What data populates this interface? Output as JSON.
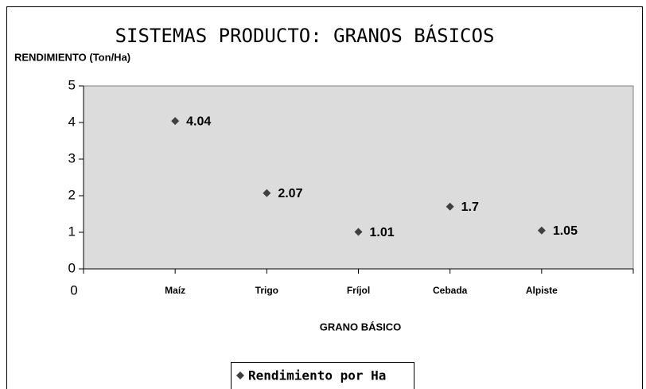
{
  "chart_data": {
    "type": "scatter",
    "title": "SISTEMAS PRODUCTO: GRANOS BÁSICOS",
    "y_label": "RENDIMIENTO (Ton/Ha)",
    "x_label": "GRANO BÁSICO",
    "x": [
      1,
      2,
      3,
      4,
      5
    ],
    "series": [
      {
        "name": "Rendimiento por Ha",
        "color": "#404040",
        "values": [
          4.04,
          2.07,
          1.01,
          1.7,
          1.05
        ]
      }
    ],
    "xlim": [
      0,
      6
    ],
    "xticks": [
      0,
      {
        "value": 1,
        "label": "Maíz"
      },
      {
        "value": 2,
        "label": "Trigo"
      },
      {
        "value": 3,
        "label": "Fríjol"
      },
      {
        "value": 4,
        "label": "Cebada"
      },
      {
        "value": 5,
        "label": "Alpiste"
      }
    ],
    "ylim": [
      0,
      5
    ],
    "yticks": [
      0,
      1,
      2,
      3,
      4,
      5
    ],
    "grid": false,
    "legend": "bottom",
    "plot_background": "#dcdcdc"
  }
}
